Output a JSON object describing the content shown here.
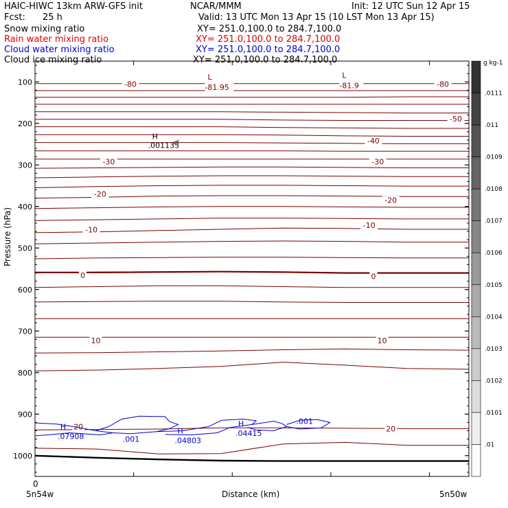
{
  "header": {
    "model": "HAIC-HIWC 13km ARW-GFS init",
    "org": "NCAR/MMM",
    "init": "Init: 12 UTC Sun 12 Apr 15",
    "fcst_label": "Fcst:",
    "fcst_value": "25 h",
    "valid": "Valid: 13 UTC Mon 13 Apr 15 (10 LST Mon 13 Apr 15)"
  },
  "legend": [
    {
      "name": "Snow mixing ratio",
      "xy": "XY= 251.0,100.0 to 284.7,100.0",
      "color": "#000000"
    },
    {
      "name": "Rain water mixing ratio",
      "xy": "XY= 251.0,100.0 to 284.7,100.0",
      "color": "#e00000"
    },
    {
      "name": "Cloud water mixing ratio",
      "xy": "XY= 251.0,100.0 to 284.7,100.0",
      "color": "#0000cc"
    },
    {
      "name": "Cloud ice mixing ratio",
      "xy": "XY= 251.0,100.0 to 284.7,100.0",
      "color": "#000000"
    }
  ],
  "chart_data": {
    "type": "line",
    "xlabel": "Distance (km)",
    "ylabel": "Pressure (hPa)",
    "x_ticks": [
      {
        "label": "0",
        "sub": "5n54w"
      },
      {
        "label": "",
        "sub": "5n50w"
      }
    ],
    "y_ticks": [
      100,
      200,
      300,
      400,
      500,
      600,
      700,
      800,
      900,
      1000
    ],
    "ylim": [
      1050,
      50
    ],
    "xlim": [
      0,
      100
    ],
    "colorbar": {
      "unit": "g kg-1",
      "labels": [
        ".0111",
        ".011",
        ".0109",
        ".0108",
        ".0107",
        ".0106",
        ".0105",
        ".0104",
        ".0103",
        ".0102",
        ".0101",
        ".01"
      ]
    },
    "temperature_isotherms": {
      "color": "#7a0000",
      "lines": [
        {
          "p": [
            104,
            104,
            104,
            104,
            104,
            104,
            104,
            104
          ]
        },
        {
          "p": [
            121,
            121,
            121,
            121,
            121,
            121,
            121,
            121
          ]
        },
        {
          "p": [
            137,
            137,
            137,
            137,
            137,
            137,
            136,
            136
          ]
        },
        {
          "p": [
            154,
            154,
            154,
            154,
            154,
            154,
            154,
            154
          ]
        },
        {
          "p": [
            172,
            172,
            172,
            172,
            173,
            174,
            175,
            175
          ]
        },
        {
          "p": [
            190,
            190,
            190,
            190,
            192,
            193,
            193,
            193
          ]
        },
        {
          "p": [
            208,
            208,
            208,
            208,
            210,
            211,
            212,
            212
          ]
        },
        {
          "p": [
            227,
            227,
            227,
            227,
            228,
            230,
            231,
            231
          ]
        },
        {
          "p": [
            246,
            246,
            246,
            246,
            247,
            248,
            249,
            249
          ]
        },
        {
          "p": [
            266,
            266,
            266,
            266,
            266,
            267,
            267,
            267
          ]
        },
        {
          "p": [
            286,
            286,
            286,
            286,
            286,
            286,
            286,
            286
          ]
        },
        {
          "p": [
            308,
            307,
            306,
            305,
            305,
            306,
            307,
            307
          ]
        },
        {
          "p": [
            331,
            329,
            327,
            326,
            326,
            327,
            328,
            328
          ]
        },
        {
          "p": [
            355,
            352,
            350,
            349,
            349,
            350,
            351,
            351
          ]
        },
        {
          "p": [
            380,
            378,
            375,
            374,
            374,
            375,
            376,
            376
          ]
        },
        {
          "p": [
            405,
            403,
            401,
            400,
            400,
            401,
            402,
            402
          ]
        },
        {
          "p": [
            434,
            432,
            430,
            428,
            428,
            429,
            430,
            430
          ]
        },
        {
          "p": [
            463,
            461,
            458,
            455,
            452,
            453,
            455,
            455
          ]
        },
        {
          "p": [
            490,
            488,
            486,
            484,
            483,
            484,
            486,
            486
          ]
        },
        {
          "p": [
            526,
            524,
            523,
            522,
            522,
            523,
            524,
            524
          ]
        },
        {
          "p": [
            560,
            558,
            557,
            557,
            559,
            560,
            560,
            560
          ]
        },
        {
          "p": [
            595,
            593,
            591,
            591,
            593,
            595,
            595,
            595
          ]
        },
        {
          "p": [
            630,
            629,
            628,
            628,
            630,
            631,
            631,
            631
          ]
        },
        {
          "p": [
            670,
            670,
            670,
            670,
            670,
            670,
            670,
            670
          ]
        },
        {
          "p": [
            715,
            715,
            715,
            715,
            715,
            715,
            715,
            715
          ]
        },
        {
          "p": [
            753,
            752,
            750,
            748,
            745,
            743,
            745,
            746
          ]
        },
        {
          "p": [
            796,
            794,
            790,
            785,
            775,
            782,
            790,
            792
          ]
        },
        {
          "p": [
            938,
            937,
            936,
            933,
            933,
            934,
            935,
            935
          ]
        },
        {
          "p": [
            982,
            984,
            996,
            995,
            972,
            968,
            975,
            975
          ]
        }
      ],
      "bold_line": {
        "p": [
          559,
          559,
          558,
          557,
          558,
          560,
          560,
          560
        ]
      },
      "labels": [
        {
          "text": "-80",
          "x": 22,
          "p": 105
        },
        {
          "text": "-80",
          "x": 94,
          "p": 105
        },
        {
          "text": "-50",
          "x": 97,
          "p": 189
        },
        {
          "text": "-40",
          "x": 78,
          "p": 242
        },
        {
          "text": "-30",
          "x": 17,
          "p": 292
        },
        {
          "text": "-30",
          "x": 79,
          "p": 292
        },
        {
          "text": "-20",
          "x": 15,
          "p": 370
        },
        {
          "text": "-20",
          "x": 82,
          "p": 385
        },
        {
          "text": "-10",
          "x": 13,
          "p": 456
        },
        {
          "text": "-10",
          "x": 77,
          "p": 445
        },
        {
          "text": "0",
          "x": 11,
          "p": 566
        },
        {
          "text": "0",
          "x": 78,
          "p": 568
        },
        {
          "text": "10",
          "x": 14,
          "p": 723
        },
        {
          "text": "10",
          "x": 80,
          "p": 723
        },
        {
          "text": "20",
          "x": 10,
          "p": 930
        },
        {
          "text": "20",
          "x": 82,
          "p": 935
        }
      ],
      "extrema": [
        {
          "mark": "L",
          "value": "-81.95",
          "x": 42,
          "p": 88
        },
        {
          "mark": "L",
          "value": "-81.9",
          "x": 73,
          "p": 84
        }
      ]
    },
    "cloud_ice": {
      "extrema": [
        {
          "mark": "H",
          "value": ".001133",
          "x": 27,
          "p": 238
        }
      ]
    },
    "cloud_water": {
      "color": "#0000cc",
      "labels": [
        {
          "text": ".07908",
          "mark": "H",
          "x": 6,
          "p": 953
        },
        {
          "text": ".001",
          "x": 21,
          "p": 960
        },
        {
          "text": ".04803",
          "mark": "H",
          "x": 33,
          "p": 963
        },
        {
          "text": ".04415",
          "mark": "H",
          "x": 47,
          "p": 946
        },
        {
          "text": ".001",
          "x": 61,
          "p": 917
        }
      ]
    },
    "terrain": {
      "p": [
        1000,
        1005,
        1009,
        1012,
        1013,
        1013,
        1013,
        1013
      ]
    }
  }
}
